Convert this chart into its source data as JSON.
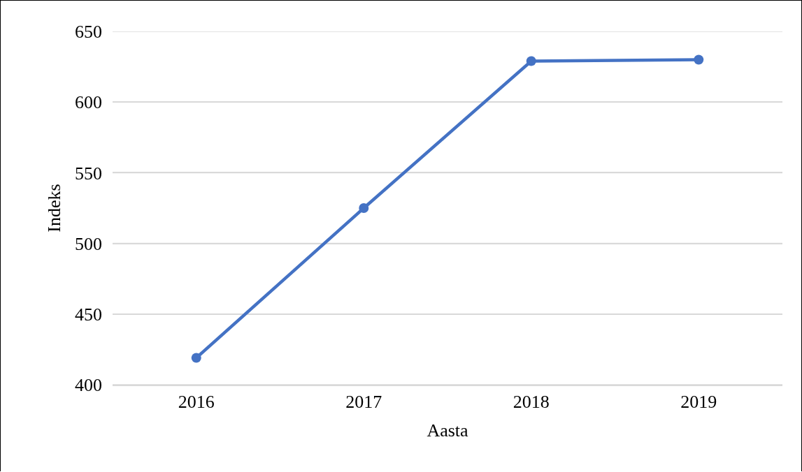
{
  "chart_data": {
    "type": "line",
    "xlabel": "Aasta",
    "ylabel": "Indeks",
    "categories": [
      "2016",
      "2017",
      "2018",
      "2019"
    ],
    "series": [
      {
        "color": "#4472c4",
        "values": [
          419,
          525,
          629,
          630
        ]
      }
    ],
    "ylim": [
      400,
      650
    ],
    "yticks": [
      400,
      450,
      500,
      550,
      600,
      650
    ],
    "grid": "y",
    "marker": "circle",
    "line_style": "solid"
  }
}
